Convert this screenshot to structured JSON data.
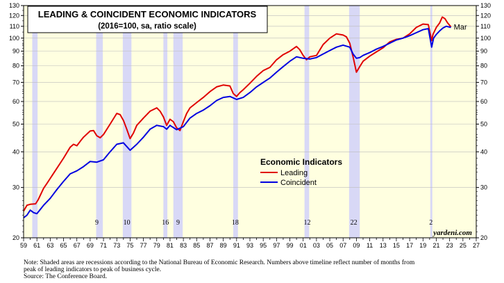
{
  "chart_data": {
    "type": "line",
    "title": "LEADING & COINCIDENT ECONOMIC INDICATORS",
    "subtitle": "(2016=100, sa, ratio scale)",
    "y_scale": "log",
    "ylim": [
      20,
      130
    ],
    "y_ticks": [
      20,
      30,
      40,
      50,
      60,
      70,
      80,
      90,
      100,
      110,
      120,
      130
    ],
    "xlim": [
      1959,
      2027
    ],
    "x_tick_labels": [
      "59",
      "61",
      "63",
      "65",
      "67",
      "69",
      "71",
      "73",
      "75",
      "77",
      "79",
      "81",
      "83",
      "85",
      "87",
      "89",
      "91",
      "93",
      "95",
      "97",
      "99",
      "01",
      "03",
      "05",
      "07",
      "09",
      "11",
      "13",
      "15",
      "17",
      "19",
      "21",
      "23",
      "25",
      "27"
    ],
    "legend": {
      "title": "Economic Indicators",
      "placement": "center-right"
    },
    "series": [
      {
        "name": "Leading",
        "color": "#e00000",
        "points": [
          [
            1959.0,
            24.8
          ],
          [
            1959.5,
            26.0
          ],
          [
            1960.0,
            26.2
          ],
          [
            1960.8,
            26.3
          ],
          [
            1961.2,
            27.2
          ],
          [
            1962.0,
            29.8
          ],
          [
            1962.5,
            31.0
          ],
          [
            1963.0,
            32.3
          ],
          [
            1964.0,
            35.0
          ],
          [
            1965.0,
            38.0
          ],
          [
            1966.0,
            41.5
          ],
          [
            1966.5,
            42.5
          ],
          [
            1967.0,
            42.0
          ],
          [
            1967.5,
            43.5
          ],
          [
            1968.0,
            45.0
          ],
          [
            1969.0,
            47.3
          ],
          [
            1969.5,
            47.5
          ],
          [
            1970.0,
            45.5
          ],
          [
            1970.5,
            44.8
          ],
          [
            1971.0,
            46.0
          ],
          [
            1972.0,
            50.0
          ],
          [
            1973.0,
            54.5
          ],
          [
            1973.5,
            54.0
          ],
          [
            1974.0,
            51.5
          ],
          [
            1974.5,
            48.0
          ],
          [
            1975.0,
            44.5
          ],
          [
            1975.5,
            46.5
          ],
          [
            1976.0,
            49.5
          ],
          [
            1977.0,
            52.5
          ],
          [
            1978.0,
            55.5
          ],
          [
            1979.0,
            57.0
          ],
          [
            1979.5,
            55.5
          ],
          [
            1980.0,
            53.0
          ],
          [
            1980.5,
            49.5
          ],
          [
            1981.0,
            52.0
          ],
          [
            1981.5,
            51.0
          ],
          [
            1982.0,
            48.5
          ],
          [
            1982.5,
            47.5
          ],
          [
            1983.0,
            51.0
          ],
          [
            1983.5,
            54.5
          ],
          [
            1984.0,
            57.0
          ],
          [
            1985.0,
            59.5
          ],
          [
            1986.0,
            62.0
          ],
          [
            1987.0,
            65.0
          ],
          [
            1988.0,
            67.5
          ],
          [
            1989.0,
            68.5
          ],
          [
            1990.0,
            68.0
          ],
          [
            1990.5,
            64.0
          ],
          [
            1991.0,
            62.5
          ],
          [
            1991.5,
            64.5
          ],
          [
            1992.0,
            66.0
          ],
          [
            1993.0,
            69.5
          ],
          [
            1994.0,
            73.5
          ],
          [
            1995.0,
            77.0
          ],
          [
            1996.0,
            79.0
          ],
          [
            1997.0,
            84.0
          ],
          [
            1998.0,
            87.5
          ],
          [
            1999.0,
            90.0
          ],
          [
            2000.0,
            93.5
          ],
          [
            2000.5,
            91.0
          ],
          [
            2001.0,
            87.0
          ],
          [
            2001.5,
            84.0
          ],
          [
            2002.0,
            86.0
          ],
          [
            2003.0,
            87.0
          ],
          [
            2004.0,
            95.0
          ],
          [
            2005.0,
            100.0
          ],
          [
            2006.0,
            103.5
          ],
          [
            2007.0,
            102.5
          ],
          [
            2007.5,
            101.0
          ],
          [
            2008.0,
            96.0
          ],
          [
            2008.5,
            86.0
          ],
          [
            2009.0,
            76.0
          ],
          [
            2009.5,
            79.5
          ],
          [
            2010.0,
            83.0
          ],
          [
            2011.0,
            86.5
          ],
          [
            2012.0,
            89.5
          ],
          [
            2013.0,
            92.5
          ],
          [
            2014.0,
            97.0
          ],
          [
            2015.0,
            99.0
          ],
          [
            2016.0,
            100.0
          ],
          [
            2017.0,
            103.5
          ],
          [
            2018.0,
            109.0
          ],
          [
            2019.0,
            112.0
          ],
          [
            2019.8,
            111.5
          ],
          [
            2020.3,
            98.0
          ],
          [
            2020.5,
            103.0
          ],
          [
            2021.0,
            109.0
          ],
          [
            2021.5,
            113.0
          ],
          [
            2021.9,
            118.5
          ],
          [
            2022.3,
            117.0
          ],
          [
            2022.7,
            113.0
          ],
          [
            2023.2,
            109.5
          ]
        ]
      },
      {
        "name": "Coincident",
        "color": "#0000e0",
        "points": [
          [
            1959.0,
            23.5
          ],
          [
            1959.5,
            24.0
          ],
          [
            1960.0,
            25.0
          ],
          [
            1960.5,
            24.5
          ],
          [
            1961.0,
            24.3
          ],
          [
            1962.0,
            26.0
          ],
          [
            1963.0,
            27.5
          ],
          [
            1964.0,
            29.5
          ],
          [
            1965.0,
            31.5
          ],
          [
            1966.0,
            33.5
          ],
          [
            1967.0,
            34.3
          ],
          [
            1968.0,
            35.5
          ],
          [
            1969.0,
            37.0
          ],
          [
            1970.0,
            36.8
          ],
          [
            1971.0,
            37.5
          ],
          [
            1972.0,
            40.0
          ],
          [
            1973.0,
            42.5
          ],
          [
            1974.0,
            43.0
          ],
          [
            1975.0,
            40.5
          ],
          [
            1976.0,
            42.5
          ],
          [
            1977.0,
            45.0
          ],
          [
            1978.0,
            48.0
          ],
          [
            1979.0,
            49.5
          ],
          [
            1980.0,
            49.0
          ],
          [
            1980.5,
            48.0
          ],
          [
            1981.0,
            49.5
          ],
          [
            1982.0,
            47.8
          ],
          [
            1983.0,
            49.0
          ],
          [
            1984.0,
            52.5
          ],
          [
            1985.0,
            54.5
          ],
          [
            1986.0,
            56.0
          ],
          [
            1987.0,
            58.0
          ],
          [
            1988.0,
            60.5
          ],
          [
            1989.0,
            62.0
          ],
          [
            1990.0,
            62.5
          ],
          [
            1991.0,
            61.0
          ],
          [
            1992.0,
            62.0
          ],
          [
            1993.0,
            64.5
          ],
          [
            1994.0,
            67.5
          ],
          [
            1995.0,
            70.0
          ],
          [
            1996.0,
            72.5
          ],
          [
            1997.0,
            76.0
          ],
          [
            1998.0,
            79.5
          ],
          [
            1999.0,
            83.0
          ],
          [
            2000.0,
            86.0
          ],
          [
            2001.0,
            85.0
          ],
          [
            2002.0,
            84.5
          ],
          [
            2003.0,
            85.5
          ],
          [
            2004.0,
            88.0
          ],
          [
            2005.0,
            90.5
          ],
          [
            2006.0,
            93.0
          ],
          [
            2007.0,
            94.5
          ],
          [
            2008.0,
            93.0
          ],
          [
            2008.5,
            88.0
          ],
          [
            2009.0,
            85.0
          ],
          [
            2009.5,
            85.5
          ],
          [
            2010.0,
            87.0
          ],
          [
            2011.0,
            89.0
          ],
          [
            2012.0,
            91.5
          ],
          [
            2013.0,
            93.5
          ],
          [
            2014.0,
            96.0
          ],
          [
            2015.0,
            98.5
          ],
          [
            2016.0,
            100.0
          ],
          [
            2017.0,
            102.0
          ],
          [
            2018.0,
            104.5
          ],
          [
            2019.0,
            107.0
          ],
          [
            2019.8,
            108.0
          ],
          [
            2020.3,
            93.0
          ],
          [
            2020.6,
            100.0
          ],
          [
            2021.0,
            103.0
          ],
          [
            2021.5,
            106.0
          ],
          [
            2022.0,
            108.5
          ],
          [
            2022.5,
            110.0
          ],
          [
            2023.2,
            109.0
          ]
        ]
      }
    ],
    "recessions": [
      [
        1960.3,
        1961.1
      ],
      [
        1969.9,
        1970.9
      ],
      [
        1973.9,
        1975.2
      ],
      [
        1980.0,
        1980.6
      ],
      [
        1981.5,
        1982.9
      ],
      [
        1990.5,
        1991.2
      ],
      [
        2001.2,
        2001.9
      ],
      [
        2007.9,
        2009.5
      ],
      [
        2020.1,
        2020.4
      ]
    ],
    "recession_labels": [
      {
        "x": 1970.0,
        "text": "9"
      },
      {
        "x": 1974.5,
        "text": "10"
      },
      {
        "x": 1980.3,
        "text": "16"
      },
      {
        "x": 1982.2,
        "text": "9"
      },
      {
        "x": 1990.8,
        "text": "18"
      },
      {
        "x": 2001.6,
        "text": "12"
      },
      {
        "x": 2008.6,
        "text": "22"
      },
      {
        "x": 2020.2,
        "text": "2"
      }
    ],
    "end_label": "Mar",
    "brand": "yardeni.com"
  },
  "note": {
    "line1": "Note: Shaded areas are recessions according to the National Bureau of Economic Research. Numbers above timeline reflect number of months from",
    "line2": "peak of leading indicators to peak of business cycle.",
    "line3": "Source: The Conference Board."
  },
  "colors": {
    "background": "#ffffff",
    "plot_background": "#ffffe0",
    "recession_shade": "#d8d8f6"
  }
}
